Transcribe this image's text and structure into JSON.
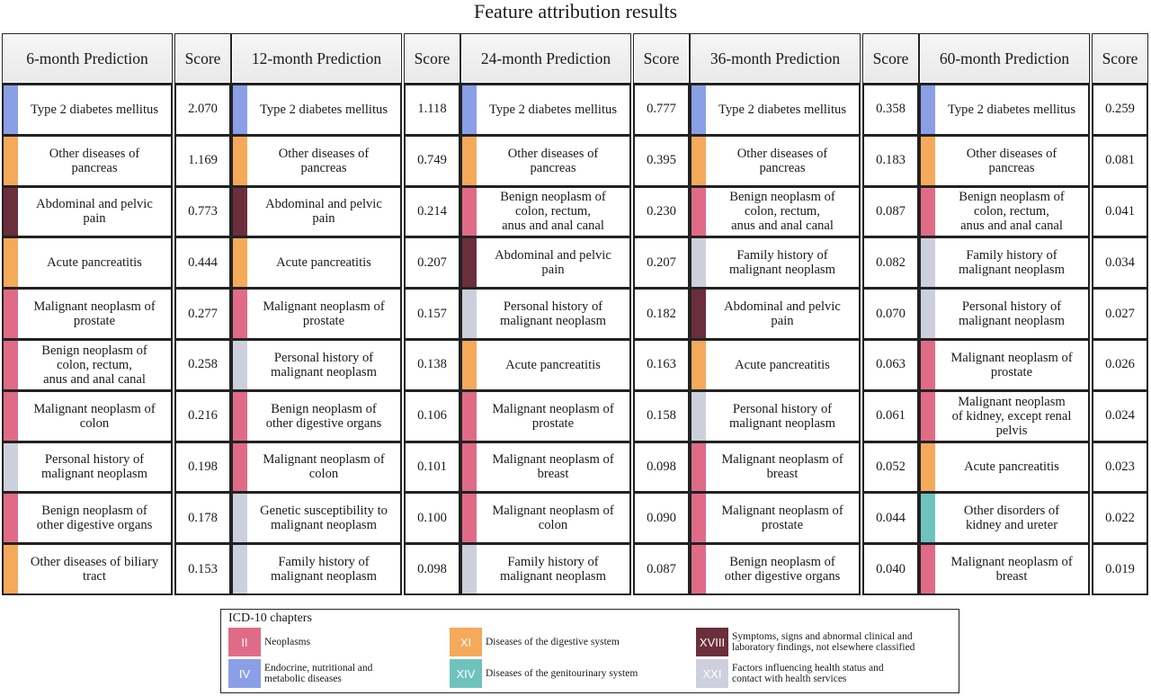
{
  "title": "Feature attribution results",
  "chapter_colors": {
    "II": "#e06b86",
    "IV": "#8a9fe6",
    "XI": "#f5a95a",
    "XIV": "#6ec3bc",
    "XVIII": "#6b2e3c",
    "XXI": "#cdd0dc"
  },
  "tables": [
    {
      "header": "6-month Prediction",
      "score_header": "Score",
      "rows": [
        {
          "name": "Type 2 diabetes mellitus",
          "score": "2.070",
          "chapter": "IV"
        },
        {
          "name": "Other diseases of\npancreas",
          "score": "1.169",
          "chapter": "XI"
        },
        {
          "name": "Abdominal and pelvic\npain",
          "score": "0.773",
          "chapter": "XVIII"
        },
        {
          "name": "Acute pancreatitis",
          "score": "0.444",
          "chapter": "XI"
        },
        {
          "name": "Malignant neoplasm of\nprostate",
          "score": "0.277",
          "chapter": "II"
        },
        {
          "name": "Benign neoplasm of\ncolon, rectum,\nanus and anal canal",
          "score": "0.258",
          "chapter": "II"
        },
        {
          "name": "Malignant neoplasm of\ncolon",
          "score": "0.216",
          "chapter": "II"
        },
        {
          "name": "Personal history of\nmalignant neoplasm",
          "score": "0.198",
          "chapter": "XXI"
        },
        {
          "name": "Benign neoplasm of\nother digestive organs",
          "score": "0.178",
          "chapter": "II"
        },
        {
          "name": "Other diseases of biliary\ntract",
          "score": "0.153",
          "chapter": "XI"
        }
      ]
    },
    {
      "header": "12-month Prediction",
      "score_header": "Score",
      "rows": [
        {
          "name": "Type 2 diabetes mellitus",
          "score": "1.118",
          "chapter": "IV"
        },
        {
          "name": "Other diseases of\npancreas",
          "score": "0.749",
          "chapter": "XI"
        },
        {
          "name": "Abdominal and pelvic\npain",
          "score": "0.214",
          "chapter": "XVIII"
        },
        {
          "name": "Acute pancreatitis",
          "score": "0.207",
          "chapter": "XI"
        },
        {
          "name": "Malignant neoplasm of\nprostate",
          "score": "0.157",
          "chapter": "II"
        },
        {
          "name": "Personal history of\nmalignant neoplasm",
          "score": "0.138",
          "chapter": "XXI"
        },
        {
          "name": "Benign neoplasm of\nother digestive organs",
          "score": "0.106",
          "chapter": "II"
        },
        {
          "name": "Malignant neoplasm of\ncolon",
          "score": "0.101",
          "chapter": "II"
        },
        {
          "name": "Genetic susceptibility to\nmalignant neoplasm",
          "score": "0.100",
          "chapter": "XXI"
        },
        {
          "name": "Family history of\nmalignant neoplasm",
          "score": "0.098",
          "chapter": "XXI"
        }
      ]
    },
    {
      "header": "24-month Prediction",
      "score_header": "Score",
      "rows": [
        {
          "name": "Type 2 diabetes mellitus",
          "score": "0.777",
          "chapter": "IV"
        },
        {
          "name": "Other diseases of\npancreas",
          "score": "0.395",
          "chapter": "XI"
        },
        {
          "name": "Benign neoplasm of\ncolon, rectum,\nanus and anal canal",
          "score": "0.230",
          "chapter": "II"
        },
        {
          "name": "Abdominal and pelvic\npain",
          "score": "0.207",
          "chapter": "XVIII"
        },
        {
          "name": "Personal history of\nmalignant neoplasm",
          "score": "0.182",
          "chapter": "XXI"
        },
        {
          "name": "Acute pancreatitis",
          "score": "0.163",
          "chapter": "XI"
        },
        {
          "name": "Malignant neoplasm of\nprostate",
          "score": "0.158",
          "chapter": "II"
        },
        {
          "name": "Malignant neoplasm of\nbreast",
          "score": "0.098",
          "chapter": "II"
        },
        {
          "name": "Malignant neoplasm of\ncolon",
          "score": "0.090",
          "chapter": "II"
        },
        {
          "name": "Family history of\nmalignant neoplasm",
          "score": "0.087",
          "chapter": "XXI"
        }
      ]
    },
    {
      "header": "36-month Prediction",
      "score_header": "Score",
      "rows": [
        {
          "name": "Type 2 diabetes mellitus",
          "score": "0.358",
          "chapter": "IV"
        },
        {
          "name": "Other diseases of\npancreas",
          "score": "0.183",
          "chapter": "XI"
        },
        {
          "name": "Benign neoplasm of\ncolon, rectum,\nanus and anal canal",
          "score": "0.087",
          "chapter": "II"
        },
        {
          "name": "Family history of\nmalignant neoplasm",
          "score": "0.082",
          "chapter": "XXI"
        },
        {
          "name": "Abdominal and pelvic\npain",
          "score": "0.070",
          "chapter": "XVIII"
        },
        {
          "name": "Acute pancreatitis",
          "score": "0.063",
          "chapter": "XI"
        },
        {
          "name": "Personal history of\nmalignant neoplasm",
          "score": "0.061",
          "chapter": "XXI"
        },
        {
          "name": "Malignant neoplasm of\nbreast",
          "score": "0.052",
          "chapter": "II"
        },
        {
          "name": "Malignant neoplasm of\nprostate",
          "score": "0.044",
          "chapter": "II"
        },
        {
          "name": "Benign neoplasm of\nother digestive organs",
          "score": "0.040",
          "chapter": "II"
        }
      ]
    },
    {
      "header": "60-month Prediction",
      "score_header": "Score",
      "rows": [
        {
          "name": "Type 2 diabetes mellitus",
          "score": "0.259",
          "chapter": "IV"
        },
        {
          "name": "Other diseases of\npancreas",
          "score": "0.081",
          "chapter": "XI"
        },
        {
          "name": "Benign neoplasm of\ncolon, rectum,\nanus and anal canal",
          "score": "0.041",
          "chapter": "II"
        },
        {
          "name": "Family history of\nmalignant neoplasm",
          "score": "0.034",
          "chapter": "XXI"
        },
        {
          "name": "Personal history of\nmalignant neoplasm",
          "score": "0.027",
          "chapter": "XXI"
        },
        {
          "name": "Malignant neoplasm of\nprostate",
          "score": "0.026",
          "chapter": "II"
        },
        {
          "name": "Malignant neoplasm\nof kidney, except renal\npelvis",
          "score": "0.024",
          "chapter": "II"
        },
        {
          "name": "Acute pancreatitis",
          "score": "0.023",
          "chapter": "XI"
        },
        {
          "name": "Other disorders of\nkidney and ureter",
          "score": "0.022",
          "chapter": "XIV"
        },
        {
          "name": "Malignant neoplasm of\nbreast",
          "score": "0.019",
          "chapter": "II"
        }
      ]
    }
  ],
  "legend": {
    "title": "ICD-10 chapters",
    "items": [
      {
        "chapter": "II",
        "label": "Neoplasms"
      },
      {
        "chapter": "XI",
        "label": "Diseases of the digestive system"
      },
      {
        "chapter": "XVIII",
        "label": "Symptoms, signs and abnormal clinical and\nlaboratory findings, not elsewhere classified"
      },
      {
        "chapter": "IV",
        "label": "Endocrine, nutritional and\nmetabolic diseases"
      },
      {
        "chapter": "XIV",
        "label": "Diseases of the genitourinary system"
      },
      {
        "chapter": "XXI",
        "label": "Factors influencing health status and\ncontact with health services"
      }
    ]
  }
}
